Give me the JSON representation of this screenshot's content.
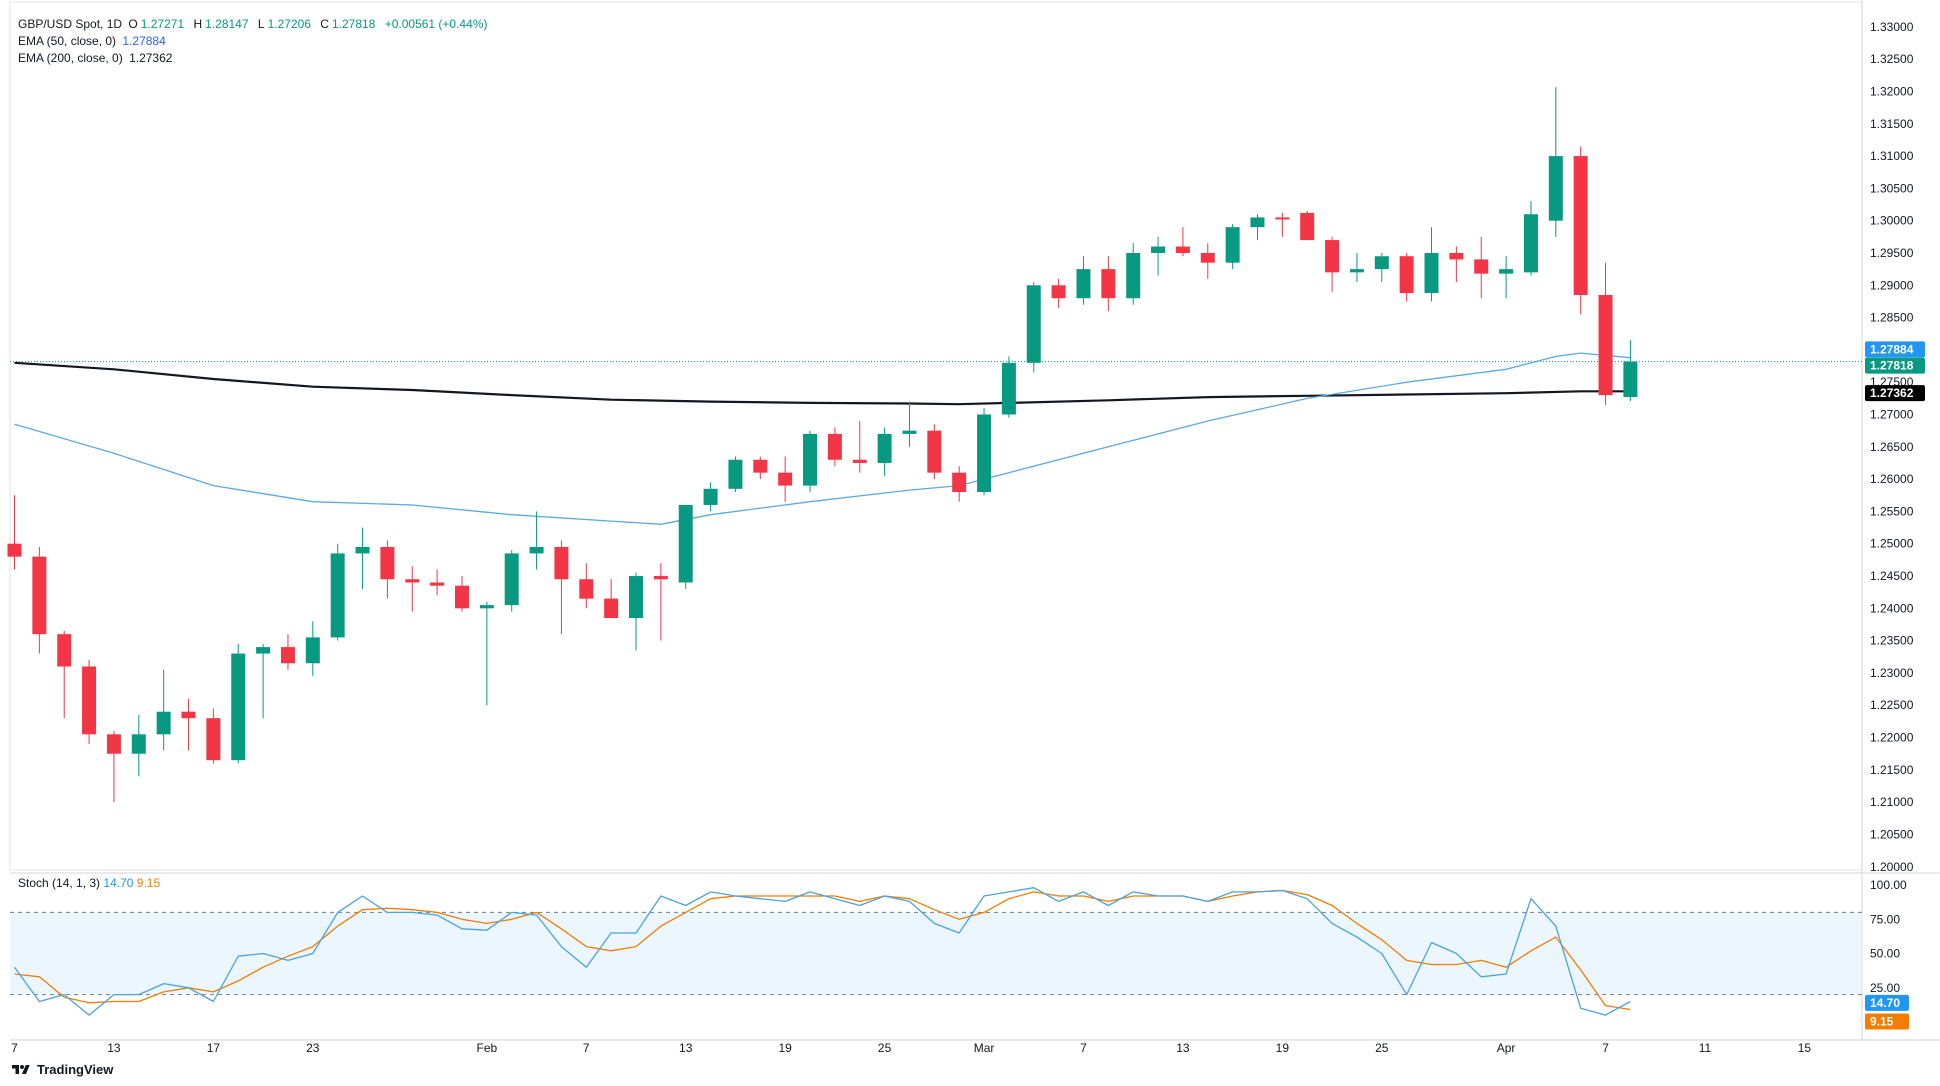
{
  "header": {
    "symbol": "GBP/USD Spot, 1D",
    "open_label": "O",
    "open": "1.27271",
    "high_label": "H",
    "high": "1.28147",
    "low_label": "L",
    "low": "1.27206",
    "close_label": "C",
    "close": "1.27818",
    "change": "+0.00561 (+0.44%)",
    "ema50_label": "EMA (50, close, 0)",
    "ema50_value": "1.27884",
    "ema200_label": "EMA (200, close, 0)",
    "ema200_value": "1.27362"
  },
  "stoch_legend": {
    "label": "Stoch (14, 1, 3)",
    "k_value": "14.70",
    "d_value": "9.15"
  },
  "brand": "TradingView",
  "colors": {
    "up": "#089981",
    "down": "#f23645",
    "ema50": "#5aa9e6",
    "ema200": "#131722",
    "stoch_k": "#4aa3df",
    "stoch_d": "#f57c00",
    "band": "#e3f2fd"
  },
  "chart_data": [
    {
      "type": "candlestick",
      "price_ticks": [
        "1.33000",
        "1.32500",
        "1.32000",
        "1.31500",
        "1.31000",
        "1.30500",
        "1.30000",
        "1.29500",
        "1.29000",
        "1.28500",
        "1.28000",
        "1.27500",
        "1.27000",
        "1.26500",
        "1.26000",
        "1.25500",
        "1.25000",
        "1.24500",
        "1.24000",
        "1.23500",
        "1.23000",
        "1.22500",
        "1.22000",
        "1.21500",
        "1.21000",
        "1.20500",
        "1.20000"
      ],
      "ylim": [
        1.1995,
        1.3323
      ],
      "x_ticks": [
        {
          "label": "7",
          "i": 0
        },
        {
          "label": "13",
          "i": 4
        },
        {
          "label": "17",
          "i": 8
        },
        {
          "label": "23",
          "i": 12
        },
        {
          "label": "Feb",
          "i": 19
        },
        {
          "label": "7",
          "i": 23
        },
        {
          "label": "13",
          "i": 27
        },
        {
          "label": "19",
          "i": 31
        },
        {
          "label": "25",
          "i": 35
        },
        {
          "label": "Mar",
          "i": 39
        },
        {
          "label": "7",
          "i": 43
        },
        {
          "label": "13",
          "i": 47
        },
        {
          "label": "19",
          "i": 51
        },
        {
          "label": "25",
          "i": 55
        },
        {
          "label": "Apr",
          "i": 60
        },
        {
          "label": "7",
          "i": 64
        },
        {
          "label": "11",
          "i": 68
        },
        {
          "label": "15",
          "i": 72
        }
      ],
      "candles": [
        [
          1.25,
          1.2575,
          1.246,
          1.248
        ],
        [
          1.248,
          1.2495,
          1.233,
          1.236
        ],
        [
          1.236,
          1.2365,
          1.223,
          1.231
        ],
        [
          1.231,
          1.232,
          1.219,
          1.2205
        ],
        [
          1.2205,
          1.221,
          1.21,
          1.2175
        ],
        [
          1.2175,
          1.2235,
          1.214,
          1.2205
        ],
        [
          1.2205,
          1.2305,
          1.218,
          1.224
        ],
        [
          1.224,
          1.226,
          1.218,
          1.223
        ],
        [
          1.223,
          1.2245,
          1.216,
          1.2165
        ],
        [
          1.2165,
          1.2345,
          1.216,
          1.233
        ],
        [
          1.233,
          1.2345,
          1.223,
          1.234
        ],
        [
          1.234,
          1.236,
          1.2305,
          1.2315
        ],
        [
          1.2315,
          1.238,
          1.2295,
          1.2355
        ],
        [
          1.2355,
          1.25,
          1.235,
          1.2485
        ],
        [
          1.2485,
          1.2525,
          1.243,
          1.2495
        ],
        [
          1.2495,
          1.2505,
          1.2415,
          1.2445
        ],
        [
          1.2445,
          1.2465,
          1.2395,
          1.244
        ],
        [
          1.244,
          1.246,
          1.242,
          1.2435
        ],
        [
          1.2435,
          1.245,
          1.2395,
          1.24
        ],
        [
          1.24,
          1.241,
          1.225,
          1.2405
        ],
        [
          1.2405,
          1.249,
          1.2395,
          1.2485
        ],
        [
          1.2485,
          1.255,
          1.246,
          1.2495
        ],
        [
          1.2495,
          1.2505,
          1.236,
          1.2445
        ],
        [
          1.2445,
          1.247,
          1.24,
          1.2415
        ],
        [
          1.2415,
          1.2445,
          1.2385,
          1.2385
        ],
        [
          1.2385,
          1.2455,
          1.2335,
          1.245
        ],
        [
          1.245,
          1.247,
          1.235,
          1.2445
        ],
        [
          1.244,
          1.256,
          1.243,
          1.256
        ],
        [
          1.256,
          1.2595,
          1.255,
          1.2585
        ],
        [
          1.2585,
          1.2635,
          1.258,
          1.263
        ],
        [
          1.263,
          1.2635,
          1.26,
          1.261
        ],
        [
          1.261,
          1.2635,
          1.2565,
          1.259
        ],
        [
          1.259,
          1.2675,
          1.258,
          1.267
        ],
        [
          1.267,
          1.268,
          1.262,
          1.263
        ],
        [
          1.263,
          1.269,
          1.261,
          1.2625
        ],
        [
          1.2625,
          1.268,
          1.2605,
          1.267
        ],
        [
          1.267,
          1.272,
          1.265,
          1.2675
        ],
        [
          1.2675,
          1.2685,
          1.26,
          1.261
        ],
        [
          1.261,
          1.262,
          1.2565,
          1.258
        ],
        [
          1.258,
          1.271,
          1.2575,
          1.27
        ],
        [
          1.27,
          1.279,
          1.2695,
          1.278
        ],
        [
          1.278,
          1.2905,
          1.2765,
          1.29
        ],
        [
          1.29,
          1.291,
          1.2865,
          1.288
        ],
        [
          1.288,
          1.2945,
          1.287,
          1.2925
        ],
        [
          1.2925,
          1.2945,
          1.286,
          1.288
        ],
        [
          1.288,
          1.2965,
          1.287,
          1.295
        ],
        [
          1.295,
          1.2975,
          1.2915,
          1.296
        ],
        [
          1.296,
          1.299,
          1.2945,
          1.295
        ],
        [
          1.295,
          1.2965,
          1.291,
          1.2935
        ],
        [
          1.2935,
          1.2995,
          1.2925,
          1.299
        ],
        [
          1.299,
          1.301,
          1.297,
          1.3005
        ],
        [
          1.3005,
          1.3012,
          1.2975,
          1.3002
        ],
        [
          1.3012,
          1.3015,
          1.298,
          1.297
        ],
        [
          1.297,
          1.2975,
          1.289,
          1.292
        ],
        [
          1.292,
          1.295,
          1.2905,
          1.2925
        ],
        [
          1.2925,
          1.295,
          1.2905,
          1.2945
        ],
        [
          1.2945,
          1.295,
          1.2875,
          1.2888
        ],
        [
          1.2888,
          1.299,
          1.2875,
          1.295
        ],
        [
          1.295,
          1.296,
          1.2905,
          1.294
        ],
        [
          1.294,
          1.2975,
          1.288,
          1.2918
        ],
        [
          1.2918,
          1.2945,
          1.288,
          1.2925
        ],
        [
          1.292,
          1.303,
          1.2915,
          1.301
        ],
        [
          1.3,
          1.3207,
          1.2975,
          1.31
        ],
        [
          1.31,
          1.3115,
          1.2855,
          1.2885
        ],
        [
          1.2885,
          1.2935,
          1.2715,
          1.273
        ],
        [
          1.2727,
          1.2815,
          1.2721,
          1.2782
        ]
      ],
      "ema50": [
        [
          0,
          1.2685
        ],
        [
          4,
          1.264
        ],
        [
          8,
          1.259
        ],
        [
          12,
          1.2565
        ],
        [
          16,
          1.256
        ],
        [
          20,
          1.2545
        ],
        [
          24,
          1.2535
        ],
        [
          26,
          1.253
        ],
        [
          28,
          1.2545
        ],
        [
          32,
          1.2565
        ],
        [
          36,
          1.2583
        ],
        [
          38,
          1.259
        ],
        [
          40,
          1.261
        ],
        [
          44,
          1.265
        ],
        [
          48,
          1.269
        ],
        [
          52,
          1.2725
        ],
        [
          56,
          1.275
        ],
        [
          60,
          1.277
        ],
        [
          62,
          1.279
        ],
        [
          63,
          1.2795
        ],
        [
          65,
          1.2788
        ]
      ],
      "ema200": [
        [
          0,
          1.278
        ],
        [
          4,
          1.277
        ],
        [
          8,
          1.2755
        ],
        [
          12,
          1.2743
        ],
        [
          16,
          1.2738
        ],
        [
          20,
          1.273
        ],
        [
          24,
          1.2723
        ],
        [
          28,
          1.272
        ],
        [
          32,
          1.2718
        ],
        [
          36,
          1.2717
        ],
        [
          38,
          1.2716
        ],
        [
          40,
          1.2718
        ],
        [
          44,
          1.2722
        ],
        [
          48,
          1.2727
        ],
        [
          52,
          1.2729
        ],
        [
          56,
          1.2731
        ],
        [
          60,
          1.2733
        ],
        [
          63,
          1.2736
        ],
        [
          65,
          1.2736
        ]
      ],
      "current_price_line": 1.27818,
      "price_labels": [
        {
          "value": "1.27884",
          "price": 1.27884,
          "color": "#2196f3"
        },
        {
          "value": "1.27818",
          "price": 1.27818,
          "color": "#089981"
        },
        {
          "value": "1.27362",
          "price": 1.27362,
          "color": "#000000"
        }
      ]
    },
    {
      "type": "line",
      "name": "Stoch (14, 1, 3)",
      "ylim": [
        0,
        100
      ],
      "y_ticks": [
        "100.00",
        "75.00",
        "50.00",
        "25.00"
      ],
      "band": [
        20,
        80
      ],
      "k": [
        40,
        15,
        20,
        5,
        20,
        20,
        28,
        25,
        15,
        48,
        50,
        45,
        50,
        80,
        92,
        80,
        80,
        78,
        68,
        67,
        80,
        78,
        55,
        40,
        65,
        65,
        92,
        85,
        95,
        92,
        90,
        88,
        95,
        90,
        85,
        92,
        88,
        72,
        65,
        92,
        95,
        98,
        88,
        95,
        85,
        95,
        92,
        92,
        88,
        95,
        95,
        96,
        90,
        72,
        62,
        50,
        20,
        58,
        50,
        33,
        35,
        90,
        70,
        10,
        5,
        15
      ],
      "d": [
        35,
        33,
        18,
        14,
        15,
        15,
        22,
        25,
        22,
        30,
        40,
        48,
        55,
        70,
        82,
        83,
        82,
        80,
        75,
        72,
        75,
        80,
        68,
        55,
        52,
        55,
        70,
        80,
        90,
        92,
        92,
        92,
        92,
        92,
        88,
        92,
        90,
        82,
        75,
        80,
        90,
        95,
        92,
        92,
        88,
        92,
        92,
        92,
        88,
        92,
        95,
        96,
        93,
        85,
        72,
        60,
        45,
        42,
        42,
        45,
        40,
        52,
        62,
        38,
        12,
        9.15
      ],
      "k_label": "14.70",
      "d_label": "9.15"
    }
  ]
}
